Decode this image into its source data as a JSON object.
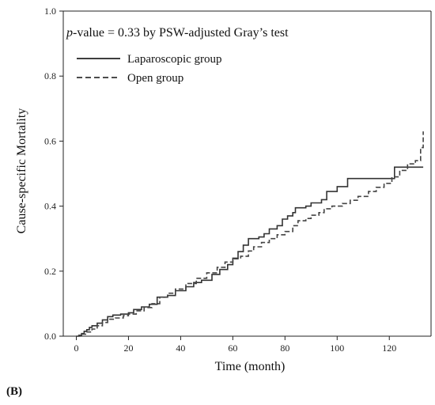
{
  "panel_label": "(B)",
  "chart_data": {
    "type": "line",
    "step": true,
    "title": "",
    "annotation": {
      "italic": "p",
      "rest": "-value = 0.33 by PSW-adjusted Gray’s test"
    },
    "xlabel": "Time (month)",
    "ylabel": "Cause-specific Mortality",
    "xlim": [
      -5,
      136
    ],
    "ylim": [
      0,
      1.0
    ],
    "xticks": [
      0,
      20,
      40,
      60,
      80,
      100,
      120
    ],
    "yticks": [
      0.0,
      0.2,
      0.4,
      0.6,
      0.8,
      1.0
    ],
    "ytick_labels": [
      "0.0",
      "0.2",
      "0.4",
      "0.6",
      "0.8",
      "1.0"
    ],
    "grid": false,
    "legend": {
      "placement": "top-left"
    },
    "series": [
      {
        "name": "Laparoscopic group",
        "style": "solid",
        "color": "#333333",
        "points": [
          [
            0,
            0
          ],
          [
            1,
            0.003
          ],
          [
            2,
            0.008
          ],
          [
            3,
            0.015
          ],
          [
            4,
            0.02
          ],
          [
            5,
            0.027
          ],
          [
            6,
            0.032
          ],
          [
            8,
            0.04
          ],
          [
            10,
            0.05
          ],
          [
            12,
            0.06
          ],
          [
            14,
            0.065
          ],
          [
            17,
            0.068
          ],
          [
            20,
            0.072
          ],
          [
            22,
            0.082
          ],
          [
            25,
            0.09
          ],
          [
            28,
            0.098
          ],
          [
            31,
            0.12
          ],
          [
            35,
            0.125
          ],
          [
            38,
            0.14
          ],
          [
            42,
            0.152
          ],
          [
            45,
            0.165
          ],
          [
            48,
            0.172
          ],
          [
            52,
            0.19
          ],
          [
            55,
            0.205
          ],
          [
            58,
            0.22
          ],
          [
            60,
            0.24
          ],
          [
            62,
            0.26
          ],
          [
            64,
            0.28
          ],
          [
            66,
            0.3
          ],
          [
            70,
            0.305
          ],
          [
            72,
            0.315
          ],
          [
            74,
            0.33
          ],
          [
            77,
            0.34
          ],
          [
            79,
            0.36
          ],
          [
            81,
            0.37
          ],
          [
            83,
            0.38
          ],
          [
            84,
            0.395
          ],
          [
            88,
            0.4
          ],
          [
            90,
            0.41
          ],
          [
            94,
            0.42
          ],
          [
            96,
            0.445
          ],
          [
            100,
            0.46
          ],
          [
            104,
            0.485
          ],
          [
            110,
            0.485
          ],
          [
            120,
            0.485
          ],
          [
            122,
            0.52
          ],
          [
            133,
            0.52
          ]
        ]
      },
      {
        "name": "Open group",
        "style": "dashed",
        "color": "#444444",
        "points": [
          [
            0,
            0
          ],
          [
            2,
            0.006
          ],
          [
            4,
            0.013
          ],
          [
            6,
            0.022
          ],
          [
            8,
            0.032
          ],
          [
            10,
            0.042
          ],
          [
            12,
            0.052
          ],
          [
            15,
            0.056
          ],
          [
            18,
            0.063
          ],
          [
            20,
            0.068
          ],
          [
            23,
            0.078
          ],
          [
            26,
            0.088
          ],
          [
            29,
            0.1
          ],
          [
            32,
            0.12
          ],
          [
            35,
            0.132
          ],
          [
            38,
            0.145
          ],
          [
            42,
            0.162
          ],
          [
            46,
            0.178
          ],
          [
            50,
            0.195
          ],
          [
            54,
            0.212
          ],
          [
            57,
            0.228
          ],
          [
            60,
            0.238
          ],
          [
            63,
            0.246
          ],
          [
            66,
            0.262
          ],
          [
            68,
            0.275
          ],
          [
            71,
            0.288
          ],
          [
            74,
            0.3
          ],
          [
            77,
            0.312
          ],
          [
            80,
            0.322
          ],
          [
            83,
            0.34
          ],
          [
            85,
            0.355
          ],
          [
            88,
            0.362
          ],
          [
            90,
            0.372
          ],
          [
            93,
            0.38
          ],
          [
            95,
            0.392
          ],
          [
            98,
            0.4
          ],
          [
            102,
            0.408
          ],
          [
            105,
            0.418
          ],
          [
            108,
            0.43
          ],
          [
            112,
            0.445
          ],
          [
            115,
            0.458
          ],
          [
            118,
            0.47
          ],
          [
            121,
            0.49
          ],
          [
            124,
            0.51
          ],
          [
            127,
            0.53
          ],
          [
            130,
            0.54
          ],
          [
            132,
            0.58
          ],
          [
            133,
            0.63
          ]
        ]
      }
    ]
  }
}
